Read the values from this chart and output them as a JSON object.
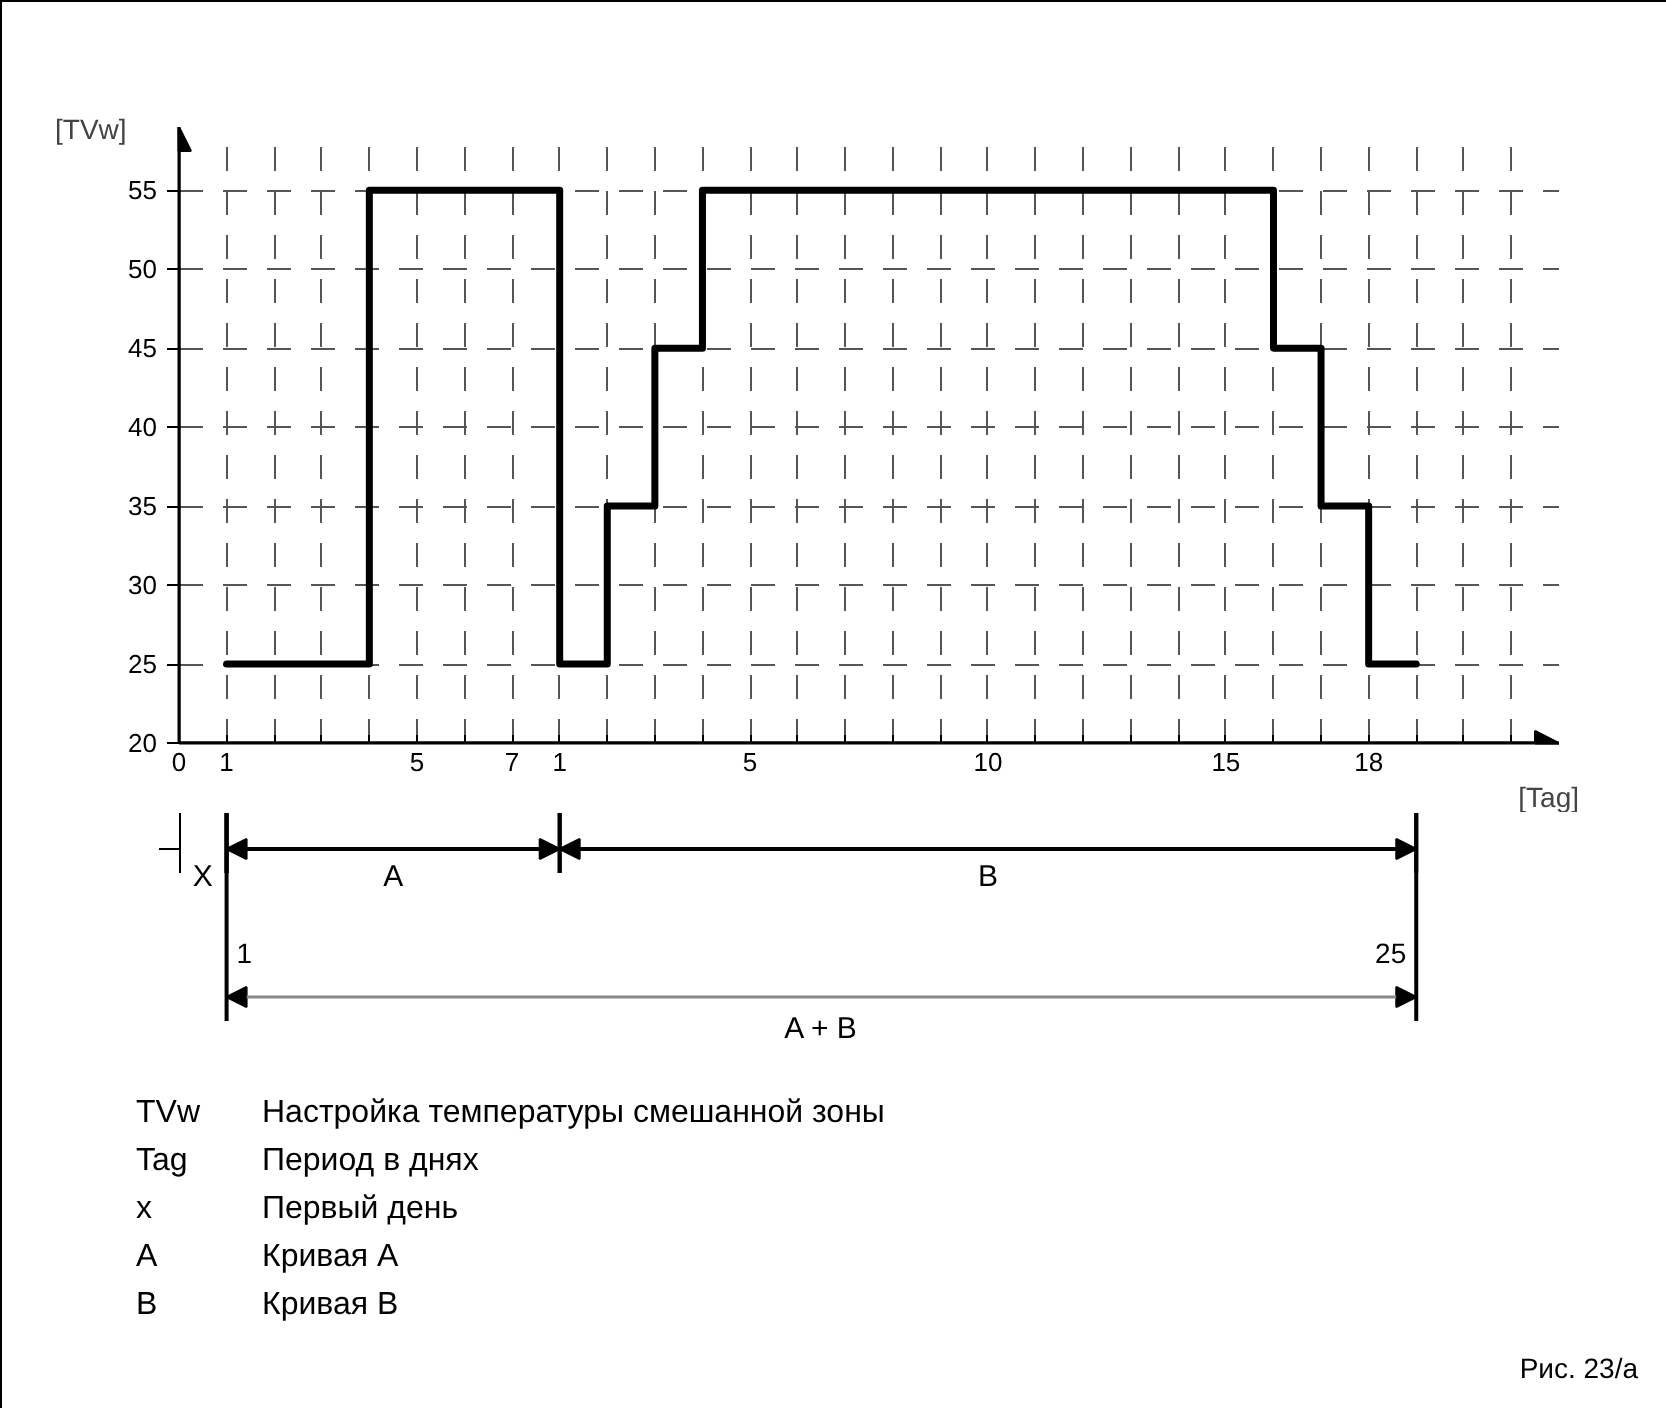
{
  "chart_data": {
    "type": "step",
    "xlabel": "[Tag]",
    "ylabel": "[TVw]",
    "color": "#000000",
    "line_style": "solid",
    "grid": true,
    "categories": [
      "0",
      "1",
      null,
      null,
      null,
      "5",
      null,
      "7",
      "1",
      null,
      null,
      null,
      "5",
      null,
      null,
      null,
      null,
      "10",
      null,
      null,
      null,
      null,
      "15",
      null,
      null,
      "18",
      null,
      null,
      null
    ],
    "values": [
      null,
      25,
      25,
      25,
      55,
      55,
      55,
      55,
      25,
      35,
      45,
      55,
      55,
      55,
      55,
      55,
      55,
      55,
      55,
      55,
      55,
      55,
      55,
      45,
      35,
      25,
      25,
      null,
      null
    ],
    "ylim": [
      20,
      59
    ],
    "yticks": [
      20,
      25,
      30,
      35,
      40,
      45,
      50,
      55
    ],
    "annotations": [
      "X",
      "A",
      "B",
      "1",
      "25",
      "A + B",
      "TVw\tНастройка температуры смешанной зоны",
      "Tag\tПериод в днях",
      "x\tПервый день",
      "A\tКривая  A",
      "B\tКривая  B",
      "Рис. 23/а"
    ]
  }
}
